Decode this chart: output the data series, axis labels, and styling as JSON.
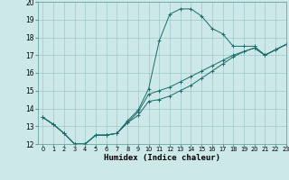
{
  "xlabel": "Humidex (Indice chaleur)",
  "xlim": [
    -0.5,
    23
  ],
  "ylim": [
    12,
    20
  ],
  "yticks": [
    12,
    13,
    14,
    15,
    16,
    17,
    18,
    19,
    20
  ],
  "xticks": [
    0,
    1,
    2,
    3,
    4,
    5,
    6,
    7,
    8,
    9,
    10,
    11,
    12,
    13,
    14,
    15,
    16,
    17,
    18,
    19,
    20,
    21,
    22,
    23
  ],
  "background_color": "#cce8e8",
  "grid_color": "#9dc8c8",
  "line_color": "#1a6b6b",
  "line1_x": [
    0,
    1,
    2,
    3,
    4,
    5,
    6,
    7,
    8,
    9,
    10,
    11,
    12,
    13,
    14,
    15,
    16,
    17,
    18,
    19,
    20,
    21,
    22,
    23
  ],
  "line1_y": [
    13.5,
    13.1,
    12.6,
    12.0,
    12.0,
    12.5,
    12.5,
    12.6,
    13.3,
    13.9,
    15.1,
    17.8,
    19.3,
    19.6,
    19.6,
    19.2,
    18.5,
    18.2,
    17.5,
    17.5,
    17.5,
    17.0,
    17.3,
    17.6
  ],
  "line2_x": [
    0,
    1,
    2,
    3,
    4,
    5,
    6,
    7,
    8,
    9,
    10,
    11,
    12,
    13,
    14,
    15,
    16,
    17,
    18,
    19,
    20,
    21,
    22,
    23
  ],
  "line2_y": [
    13.5,
    13.1,
    12.6,
    12.0,
    12.0,
    12.5,
    12.5,
    12.6,
    13.2,
    13.8,
    14.8,
    15.0,
    15.2,
    15.5,
    15.8,
    16.1,
    16.4,
    16.7,
    17.0,
    17.2,
    17.4,
    17.0,
    17.3,
    17.6
  ],
  "line3_x": [
    0,
    1,
    2,
    3,
    4,
    5,
    6,
    7,
    8,
    9,
    10,
    11,
    12,
    13,
    14,
    15,
    16,
    17,
    18,
    19,
    20,
    21,
    22,
    23
  ],
  "line3_y": [
    13.5,
    13.1,
    12.6,
    12.0,
    12.0,
    12.5,
    12.5,
    12.6,
    13.2,
    13.6,
    14.4,
    14.5,
    14.7,
    15.0,
    15.3,
    15.7,
    16.1,
    16.5,
    16.9,
    17.2,
    17.4,
    17.0,
    17.3,
    17.6
  ],
  "xlabel_fontsize": 6.5,
  "tick_fontsize": 4.8,
  "ytick_fontsize": 5.5
}
